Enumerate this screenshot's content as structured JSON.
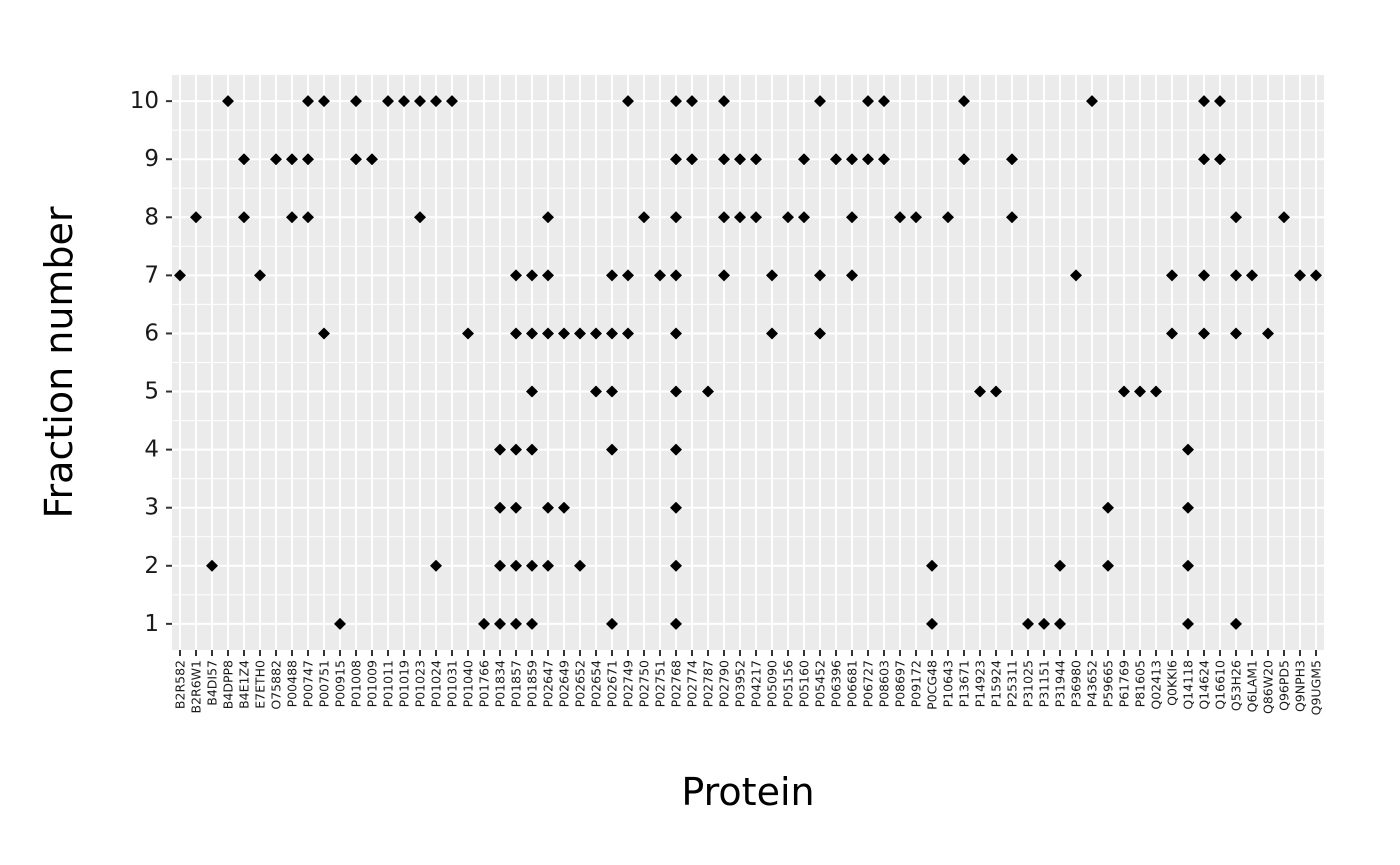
{
  "chart_data": {
    "type": "scatter",
    "title": "",
    "xlabel": "Protein",
    "ylabel": "Fraction number",
    "ylim": [
      0.55,
      10.45
    ],
    "yticks": [
      1,
      2,
      3,
      4,
      5,
      6,
      7,
      8,
      9,
      10
    ],
    "grid": true,
    "legend": "none",
    "colors": {
      "panel": "#ebebeb",
      "grid": "#ffffff",
      "point": "#000000",
      "tick": "#333333"
    },
    "categories": [
      "B2R582",
      "B2R6W1",
      "B4DI57",
      "B4DPP8",
      "B4E1Z4",
      "E7ETH0",
      "O75882",
      "P00488",
      "P00747",
      "P00751",
      "P00915",
      "P01008",
      "P01009",
      "P01011",
      "P01019",
      "P01023",
      "P01024",
      "P01031",
      "P01040",
      "P01766",
      "P01834",
      "P01857",
      "P01859",
      "P02647",
      "P02649",
      "P02652",
      "P02654",
      "P02671",
      "P02749",
      "P02750",
      "P02751",
      "P02768",
      "P02774",
      "P02787",
      "P02790",
      "P03952",
      "P04217",
      "P05090",
      "P05156",
      "P05160",
      "P05452",
      "P06396",
      "P06681",
      "P06727",
      "P08603",
      "P08697",
      "P09172",
      "P0CG48",
      "P10643",
      "P13671",
      "P14923",
      "P15924",
      "P25311",
      "P31025",
      "P31151",
      "P31944",
      "P36980",
      "P43652",
      "P59665",
      "P61769",
      "P81605",
      "Q02413",
      "Q0KKI6",
      "Q14118",
      "Q14624",
      "Q16610",
      "Q53H26",
      "Q6LAM1",
      "Q86W20",
      "Q96PD5",
      "Q9NPH3",
      "Q9UGM5"
    ],
    "points": [
      [
        "B2R582",
        7
      ],
      [
        "B2R6W1",
        8
      ],
      [
        "B4DI57",
        2
      ],
      [
        "B4DPP8",
        10
      ],
      [
        "B4E1Z4",
        9
      ],
      [
        "B4E1Z4",
        8
      ],
      [
        "E7ETH0",
        7
      ],
      [
        "O75882",
        9
      ],
      [
        "P00488",
        9
      ],
      [
        "P00488",
        8
      ],
      [
        "P00747",
        10
      ],
      [
        "P00747",
        9
      ],
      [
        "P00747",
        8
      ],
      [
        "P00751",
        10
      ],
      [
        "P00751",
        6
      ],
      [
        "P00915",
        1
      ],
      [
        "P01008",
        10
      ],
      [
        "P01008",
        9
      ],
      [
        "P01009",
        9
      ],
      [
        "P01011",
        10
      ],
      [
        "P01019",
        10
      ],
      [
        "P01023",
        10
      ],
      [
        "P01023",
        8
      ],
      [
        "P01024",
        10
      ],
      [
        "P01024",
        2
      ],
      [
        "P01031",
        10
      ],
      [
        "P01040",
        6
      ],
      [
        "P01766",
        1
      ],
      [
        "P01834",
        4
      ],
      [
        "P01834",
        3
      ],
      [
        "P01834",
        2
      ],
      [
        "P01834",
        1
      ],
      [
        "P01857",
        7
      ],
      [
        "P01857",
        6
      ],
      [
        "P01857",
        4
      ],
      [
        "P01857",
        3
      ],
      [
        "P01857",
        2
      ],
      [
        "P01857",
        1
      ],
      [
        "P01859",
        7
      ],
      [
        "P01859",
        6
      ],
      [
        "P01859",
        5
      ],
      [
        "P01859",
        4
      ],
      [
        "P01859",
        2
      ],
      [
        "P01859",
        1
      ],
      [
        "P02647",
        8
      ],
      [
        "P02647",
        7
      ],
      [
        "P02647",
        6
      ],
      [
        "P02647",
        3
      ],
      [
        "P02647",
        2
      ],
      [
        "P02649",
        6
      ],
      [
        "P02649",
        3
      ],
      [
        "P02652",
        6
      ],
      [
        "P02652",
        2
      ],
      [
        "P02654",
        6
      ],
      [
        "P02654",
        5
      ],
      [
        "P02671",
        7
      ],
      [
        "P02671",
        6
      ],
      [
        "P02671",
        5
      ],
      [
        "P02671",
        4
      ],
      [
        "P02671",
        1
      ],
      [
        "P02749",
        10
      ],
      [
        "P02749",
        7
      ],
      [
        "P02749",
        6
      ],
      [
        "P02750",
        8
      ],
      [
        "P02751",
        7
      ],
      [
        "P02768",
        10
      ],
      [
        "P02768",
        9
      ],
      [
        "P02768",
        8
      ],
      [
        "P02768",
        7
      ],
      [
        "P02768",
        6
      ],
      [
        "P02768",
        5
      ],
      [
        "P02768",
        4
      ],
      [
        "P02768",
        3
      ],
      [
        "P02768",
        2
      ],
      [
        "P02768",
        1
      ],
      [
        "P02774",
        10
      ],
      [
        "P02774",
        9
      ],
      [
        "P02787",
        5
      ],
      [
        "P02790",
        10
      ],
      [
        "P02790",
        9
      ],
      [
        "P02790",
        8
      ],
      [
        "P02790",
        7
      ],
      [
        "P03952",
        9
      ],
      [
        "P03952",
        8
      ],
      [
        "P04217",
        9
      ],
      [
        "P04217",
        8
      ],
      [
        "P05090",
        7
      ],
      [
        "P05090",
        6
      ],
      [
        "P05156",
        8
      ],
      [
        "P05160",
        9
      ],
      [
        "P05160",
        8
      ],
      [
        "P05452",
        10
      ],
      [
        "P05452",
        7
      ],
      [
        "P05452",
        6
      ],
      [
        "P06396",
        9
      ],
      [
        "P06681",
        9
      ],
      [
        "P06681",
        8
      ],
      [
        "P06681",
        7
      ],
      [
        "P06727",
        10
      ],
      [
        "P06727",
        9
      ],
      [
        "P08603",
        10
      ],
      [
        "P08603",
        9
      ],
      [
        "P08697",
        8
      ],
      [
        "P09172",
        8
      ],
      [
        "P0CG48",
        2
      ],
      [
        "P0CG48",
        1
      ],
      [
        "P10643",
        8
      ],
      [
        "P13671",
        10
      ],
      [
        "P13671",
        9
      ],
      [
        "P14923",
        5
      ],
      [
        "P15924",
        5
      ],
      [
        "P25311",
        9
      ],
      [
        "P25311",
        8
      ],
      [
        "P31025",
        1
      ],
      [
        "P31151",
        1
      ],
      [
        "P31944",
        2
      ],
      [
        "P31944",
        1
      ],
      [
        "P36980",
        7
      ],
      [
        "P43652",
        10
      ],
      [
        "P59665",
        3
      ],
      [
        "P59665",
        2
      ],
      [
        "P61769",
        5
      ],
      [
        "P81605",
        5
      ],
      [
        "Q02413",
        5
      ],
      [
        "Q0KKI6",
        7
      ],
      [
        "Q0KKI6",
        6
      ],
      [
        "Q14118",
        4
      ],
      [
        "Q14118",
        3
      ],
      [
        "Q14118",
        2
      ],
      [
        "Q14118",
        1
      ],
      [
        "Q14624",
        10
      ],
      [
        "Q14624",
        9
      ],
      [
        "Q14624",
        7
      ],
      [
        "Q14624",
        6
      ],
      [
        "Q16610",
        10
      ],
      [
        "Q16610",
        9
      ],
      [
        "Q53H26",
        8
      ],
      [
        "Q53H26",
        7
      ],
      [
        "Q53H26",
        6
      ],
      [
        "Q53H26",
        1
      ],
      [
        "Q6LAM1",
        7
      ],
      [
        "Q86W20",
        6
      ],
      [
        "Q96PD5",
        8
      ],
      [
        "Q9NPH3",
        7
      ],
      [
        "Q9UGM5",
        7
      ]
    ]
  }
}
